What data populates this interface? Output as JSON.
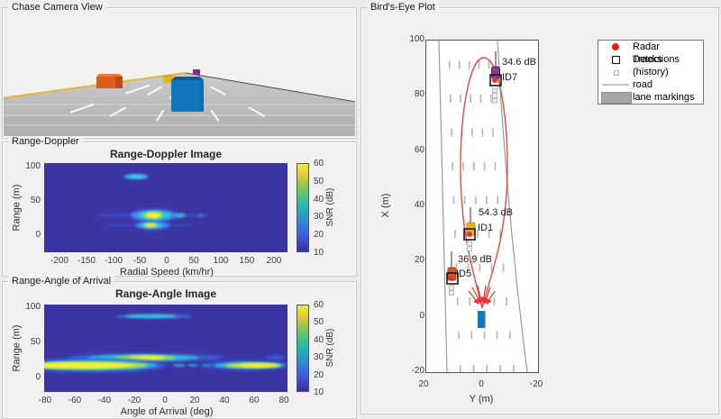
{
  "figure": {
    "background": "#ededed",
    "panel_background": "#f0f0f0"
  },
  "chase_camera": {
    "label": "Chase Camera View",
    "vehicles": [
      {
        "name": "orange-truck",
        "color": "#D95319"
      },
      {
        "name": "yellow-car",
        "color": "#EDB120"
      },
      {
        "name": "purple-car",
        "color": "#7E2F8E"
      },
      {
        "name": "blue-truck",
        "color": "#0072BD"
      }
    ],
    "road_color": "#bcbcbc",
    "lane_line_color": "#ffffff",
    "edge_line_color": "#dcb83c"
  },
  "range_doppler": {
    "label": "Range-Doppler",
    "plot_title": "Range-Doppler Image",
    "xlabel": "Radial Speed (km/hr)",
    "ylabel": "Range (m)",
    "x_ticks": [
      "-200",
      "-150",
      "-100",
      "-50",
      "0",
      "50",
      "100",
      "150",
      "200"
    ],
    "y_ticks": [
      "100",
      "50",
      "0"
    ],
    "colorbar": {
      "label": "SNR (dB)",
      "ticks": [
        "60",
        "50",
        "40",
        "30",
        "20",
        "10"
      ]
    }
  },
  "range_angle": {
    "label": "Range-Angle of Arrival",
    "plot_title": "Range-Angle Image",
    "xlabel": "Angle of Arrival (deg)",
    "ylabel": "Range (m)",
    "x_ticks": [
      "-80",
      "-60",
      "-40",
      "-20",
      "0",
      "20",
      "40",
      "60",
      "80"
    ],
    "y_ticks": [
      "100",
      "50",
      "0"
    ],
    "colorbar": {
      "label": "SNR (dB)",
      "ticks": [
        "60",
        "50",
        "40",
        "30",
        "20",
        "10"
      ]
    }
  },
  "birds_eye": {
    "label": "Bird's-Eye Plot",
    "xlabel": "Y (m)",
    "ylabel": "X (m)",
    "x_ticks": [
      "20",
      "0",
      "-20"
    ],
    "y_ticks": [
      "100",
      "80",
      "60",
      "40",
      "20",
      "0",
      "-20"
    ],
    "legend": [
      {
        "label": "Radar Detections",
        "marker": "red-dot"
      },
      {
        "label": "Tracks",
        "marker": "black-square-outline"
      },
      {
        "label": "(history)",
        "marker": "gray-square-outline"
      },
      {
        "label": "road",
        "marker": "gray-line"
      },
      {
        "label": "lane markings",
        "marker": "gray-patch"
      }
    ],
    "annotations": {
      "id7": {
        "snr": "34.6 dB",
        "id": "ID7"
      },
      "id1": {
        "snr": "54.3 dB",
        "id": "ID1"
      },
      "id5": {
        "snr": "36.9 dB",
        "id": "ID5"
      }
    },
    "colors": {
      "detection": "#e8342c",
      "track": "#1a1a1a",
      "history": "#b8b8b8",
      "coverage": "#e8342c",
      "ego": "#1377be"
    }
  },
  "chart_data": [
    {
      "type": "heatmap",
      "title": "Range-Doppler Image",
      "xlabel": "Radial Speed (km/hr)",
      "ylabel": "Range (m)",
      "xlim": [
        -230,
        230
      ],
      "ylim": [
        -26,
        104
      ],
      "colorbar": {
        "label": "SNR (dB)",
        "range": [
          10,
          60
        ]
      },
      "colormap": "parula",
      "background_snr_db": 10,
      "detections": [
        {
          "radial_speed_kmh": -55,
          "range_m": 84,
          "peak_snr_db": 30
        },
        {
          "radial_speed_kmh": -23,
          "range_m": 28,
          "peak_snr_db": 60
        },
        {
          "radial_speed_kmh": -23,
          "range_m": 14,
          "peak_snr_db": 55
        }
      ]
    },
    {
      "type": "heatmap",
      "title": "Range-Angle Image",
      "xlabel": "Angle of Arrival (deg)",
      "ylabel": "Range (m)",
      "xlim": [
        -85,
        85
      ],
      "ylim": [
        -26,
        104
      ],
      "colorbar": {
        "label": "SNR (dB)",
        "range": [
          10,
          60
        ]
      },
      "colormap": "parula",
      "background_snr_db": 10,
      "features": [
        {
          "range_m": 85,
          "angle_span_deg": [
            -30,
            33
          ],
          "peak_angle_deg": -7,
          "peak_snr_db": 28
        },
        {
          "range_m": 27,
          "angle_span_deg": [
            -63,
            35
          ],
          "peak_angle_deg": -12,
          "peak_snr_db": 58
        },
        {
          "range_m": 15,
          "angle_span_deg": [
            -80,
            8
          ],
          "peak_angle_deg": -45,
          "peak_snr_db": 60
        },
        {
          "range_m": 15,
          "angle_span_deg": [
            38,
            80
          ],
          "peak_angle_deg": 62,
          "peak_snr_db": 50
        }
      ]
    },
    {
      "type": "scatter",
      "title": "Bird's-Eye Plot",
      "xlabel": "Y (m)",
      "ylabel": "X (m)",
      "xlim": [
        20,
        -20
      ],
      "ylim": [
        -20,
        100
      ],
      "x_axis_reversed": true,
      "ego_vehicle": {
        "x_m": 0,
        "y_m": 0
      },
      "radar_coverage_max_range_m": 93,
      "tracks": [
        {
          "id": "ID1",
          "snr_db": 54.3,
          "x_m": 30,
          "y_m": 4.5,
          "color": "#EDB120"
        },
        {
          "id": "ID5",
          "snr_db": 36.9,
          "x_m": 14,
          "y_m": 11,
          "color": "#D95319"
        },
        {
          "id": "ID7",
          "snr_db": 34.6,
          "x_m": 85.5,
          "y_m": -4.5,
          "color": "#7E2F8E"
        }
      ],
      "legend_position": "top-right"
    }
  ]
}
